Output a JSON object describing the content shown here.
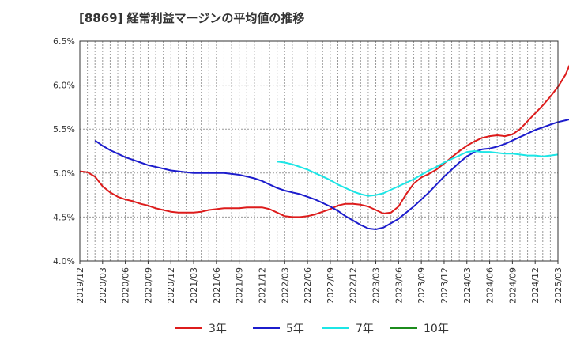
{
  "chart_data": {
    "type": "line",
    "title": "[8869]  経常利益マージンの平均値の推移",
    "xlabel": "",
    "ylabel": "",
    "ylim": [
      4.0,
      6.5
    ],
    "y_ticks": [
      "4.0%",
      "4.5%",
      "5.0%",
      "5.5%",
      "6.0%",
      "6.5%"
    ],
    "x_ticks": [
      "2019/12",
      "2020/03",
      "2020/06",
      "2020/09",
      "2020/12",
      "2021/03",
      "2021/06",
      "2021/09",
      "2021/12",
      "2022/03",
      "2022/06",
      "2022/09",
      "2022/12",
      "2023/03",
      "2023/06",
      "2023/09",
      "2023/12",
      "2024/03",
      "2024/06",
      "2024/09",
      "2024/12",
      "2025/03"
    ],
    "x_start": "2019/12",
    "x_end": "2025/03",
    "grid": true,
    "legend_position": "bottom",
    "series": [
      {
        "name": "3年",
        "color": "#dd1c1c",
        "start": "2019/12",
        "values": [
          5.02,
          5.01,
          4.96,
          4.85,
          4.78,
          4.73,
          4.7,
          4.68,
          4.65,
          4.63,
          4.6,
          4.58,
          4.56,
          4.55,
          4.55,
          4.55,
          4.56,
          4.58,
          4.59,
          4.6,
          4.6,
          4.6,
          4.61,
          4.61,
          4.61,
          4.59,
          4.55,
          4.51,
          4.5,
          4.5,
          4.51,
          4.53,
          4.56,
          4.59,
          4.63,
          4.65,
          4.65,
          4.64,
          4.62,
          4.58,
          4.54,
          4.55,
          4.62,
          4.76,
          4.88,
          4.95,
          4.99,
          5.04,
          5.11,
          5.18,
          5.25,
          5.31,
          5.36,
          5.4,
          5.42,
          5.43,
          5.42,
          5.44,
          5.5,
          5.59,
          5.68,
          5.77,
          5.87,
          5.98,
          6.12,
          6.32
        ]
      },
      {
        "name": "5年",
        "color": "#1c1ccc",
        "start": "2020/02",
        "values": [
          5.37,
          5.31,
          5.26,
          5.22,
          5.18,
          5.15,
          5.12,
          5.09,
          5.07,
          5.05,
          5.03,
          5.02,
          5.01,
          5.0,
          5.0,
          5.0,
          5.0,
          5.0,
          4.99,
          4.98,
          4.96,
          4.94,
          4.91,
          4.87,
          4.83,
          4.8,
          4.78,
          4.76,
          4.73,
          4.7,
          4.66,
          4.62,
          4.57,
          4.51,
          4.46,
          4.41,
          4.37,
          4.36,
          4.38,
          4.43,
          4.48,
          4.55,
          4.62,
          4.7,
          4.78,
          4.87,
          4.96,
          5.04,
          5.12,
          5.19,
          5.24,
          5.27,
          5.28,
          5.3,
          5.33,
          5.37,
          5.41,
          5.45,
          5.49,
          5.52,
          5.55,
          5.58,
          5.6,
          5.62
        ]
      },
      {
        "name": "7年",
        "color": "#1ce6e6",
        "start": "2022/02",
        "values": [
          5.13,
          5.12,
          5.1,
          5.07,
          5.04,
          5.0,
          4.96,
          4.92,
          4.87,
          4.83,
          4.79,
          4.76,
          4.74,
          4.75,
          4.77,
          4.81,
          4.85,
          4.89,
          4.93,
          4.98,
          5.03,
          5.07,
          5.12,
          5.16,
          5.2,
          5.24,
          5.25,
          5.24,
          5.24,
          5.23,
          5.22,
          5.22,
          5.21,
          5.2,
          5.2,
          5.19,
          5.2,
          5.21
        ]
      },
      {
        "name": "10年",
        "color": "#1c8c1c",
        "start": "2024/12",
        "values": []
      }
    ]
  }
}
